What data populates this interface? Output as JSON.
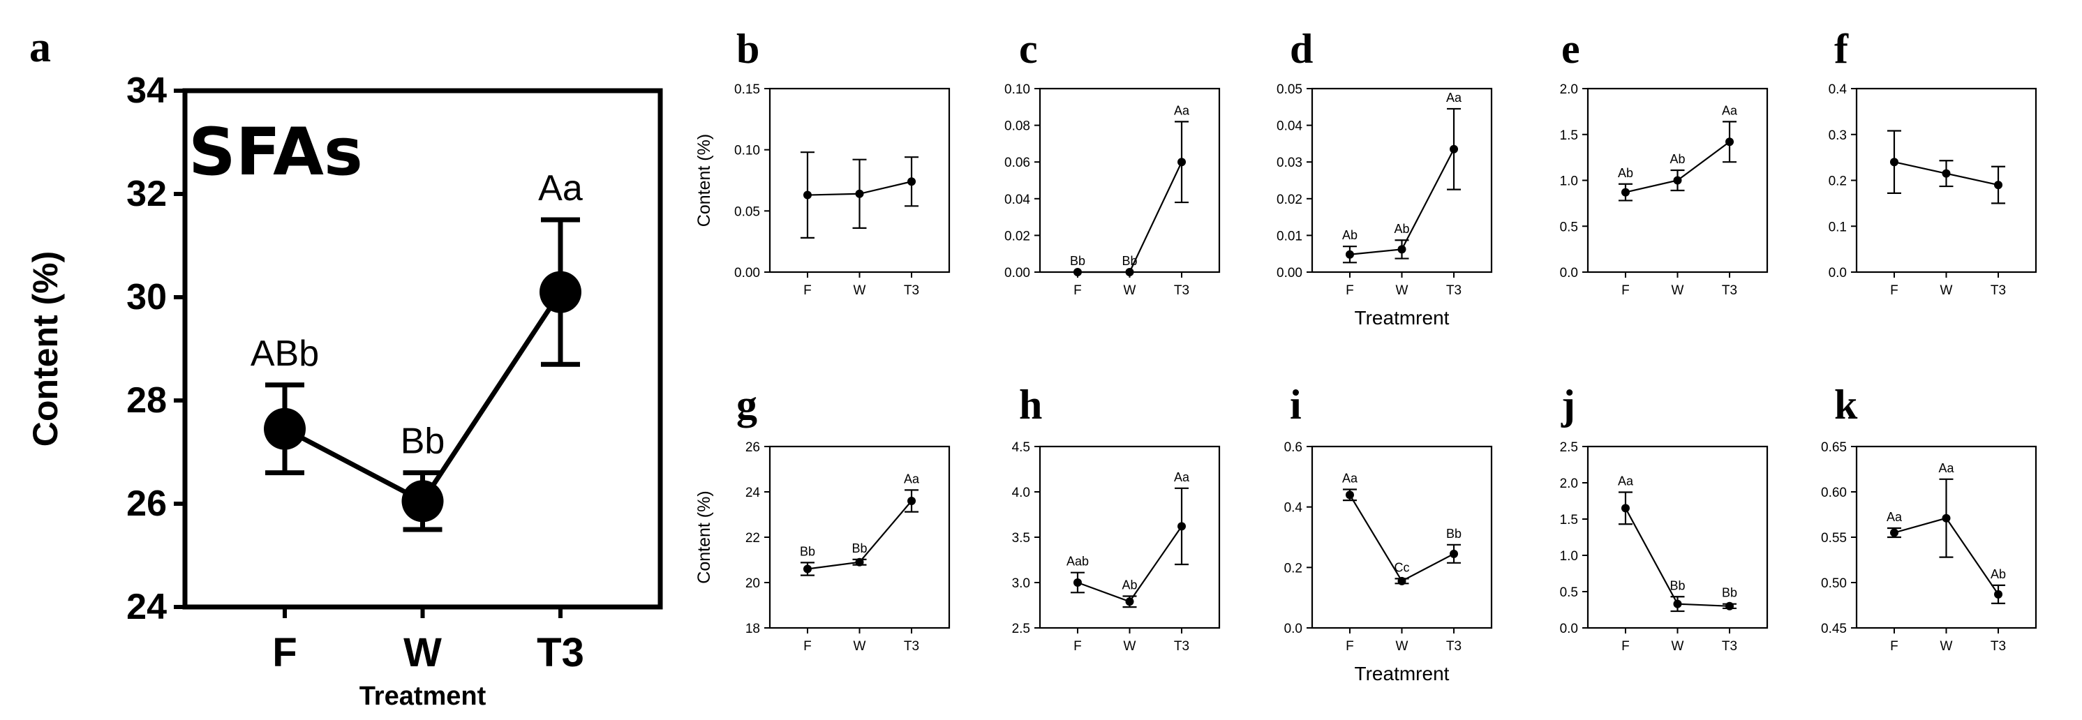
{
  "chart_data": [
    {
      "panel": "a",
      "type": "line",
      "title": "SFAs",
      "ylabel": "Content (%)",
      "xlabel": "Treatment",
      "categories": [
        "F",
        "W",
        "T3"
      ],
      "values": [
        27.45,
        26.05,
        30.1
      ],
      "errors": [
        0.85,
        0.55,
        1.4
      ],
      "significance": [
        "ABb",
        "Bb",
        "Aa"
      ],
      "ylim": [
        24,
        34
      ],
      "yticks": [
        "24",
        "26",
        "28",
        "30",
        "32",
        "34"
      ]
    },
    {
      "panel": "b",
      "type": "line",
      "ylabel": "Content (%)",
      "xlabel": "",
      "categories": [
        "F",
        "W",
        "T3"
      ],
      "values": [
        0.063,
        0.064,
        0.074
      ],
      "errors": [
        0.035,
        0.028,
        0.02
      ],
      "significance": [
        "",
        "",
        ""
      ],
      "ylim": [
        0,
        0.15
      ],
      "yticks": [
        "0.00",
        "0.05",
        "0.10",
        "0.15"
      ]
    },
    {
      "panel": "c",
      "type": "line",
      "ylabel": "",
      "xlabel": "",
      "categories": [
        "F",
        "W",
        "T3"
      ],
      "values": [
        0.0,
        0.0,
        0.06
      ],
      "errors": [
        0,
        0,
        0.022
      ],
      "significance": [
        "Bb",
        "Bb",
        "Aa"
      ],
      "ylim": [
        0,
        0.1
      ],
      "yticks": [
        "0.00",
        "0.02",
        "0.04",
        "0.06",
        "0.08",
        "0.10"
      ]
    },
    {
      "panel": "d",
      "type": "line",
      "ylabel": "",
      "xlabel": "Treatmrent",
      "categories": [
        "F",
        "W",
        "T3"
      ],
      "values": [
        0.0048,
        0.0062,
        0.0335
      ],
      "errors": [
        0.0022,
        0.0025,
        0.011
      ],
      "significance": [
        "Ab",
        "Ab",
        "Aa"
      ],
      "ylim": [
        0,
        0.05
      ],
      "yticks": [
        "0.00",
        "0.01",
        "0.02",
        "0.03",
        "0.04",
        "0.05"
      ]
    },
    {
      "panel": "e",
      "type": "line",
      "ylabel": "",
      "xlabel": "",
      "categories": [
        "F",
        "W",
        "T3"
      ],
      "values": [
        0.87,
        1.0,
        1.42
      ],
      "errors": [
        0.09,
        0.11,
        0.22
      ],
      "significance": [
        "Ab",
        "Ab",
        "Aa"
      ],
      "ylim": [
        0,
        2.0
      ],
      "yticks": [
        "0.0",
        "0.5",
        "1.0",
        "1.5",
        "2.0"
      ]
    },
    {
      "panel": "f",
      "type": "line",
      "ylabel": "",
      "xlabel": "",
      "categories": [
        "F",
        "W",
        "T3"
      ],
      "values": [
        0.24,
        0.215,
        0.19
      ],
      "errors": [
        0.068,
        0.028,
        0.04
      ],
      "significance": [
        "",
        "",
        ""
      ],
      "ylim": [
        0,
        0.4
      ],
      "yticks": [
        "0.0",
        "0.1",
        "0.2",
        "0.3",
        "0.4"
      ]
    },
    {
      "panel": "g",
      "type": "line",
      "ylabel": "Content (%)",
      "xlabel": "",
      "categories": [
        "F",
        "W",
        "T3"
      ],
      "values": [
        20.6,
        20.9,
        23.6
      ],
      "errors": [
        0.28,
        0.12,
        0.48
      ],
      "significance": [
        "Bb",
        "Bb",
        "Aa"
      ],
      "ylim": [
        18,
        26
      ],
      "yticks": [
        "18",
        "20",
        "22",
        "24",
        "26"
      ]
    },
    {
      "panel": "h",
      "type": "line",
      "ylabel": "",
      "xlabel": "",
      "categories": [
        "F",
        "W",
        "T3"
      ],
      "values": [
        3.0,
        2.79,
        3.62
      ],
      "errors": [
        0.11,
        0.06,
        0.42
      ],
      "significance": [
        "Aab",
        "Ab",
        "Aa"
      ],
      "ylim": [
        2.5,
        4.5
      ],
      "yticks": [
        "2.5",
        "3.0",
        "3.5",
        "4.0",
        "4.5"
      ]
    },
    {
      "panel": "i",
      "type": "line",
      "ylabel": "",
      "xlabel": "Treatmrent",
      "categories": [
        "F",
        "W",
        "T3"
      ],
      "values": [
        0.44,
        0.155,
        0.245
      ],
      "errors": [
        0.018,
        0.008,
        0.03
      ],
      "significance": [
        "Aa",
        "Cc",
        "Bb"
      ],
      "ylim": [
        0,
        0.6
      ],
      "yticks": [
        "0.0",
        "0.2",
        "0.4",
        "0.6"
      ]
    },
    {
      "panel": "j",
      "type": "line",
      "ylabel": "",
      "xlabel": "",
      "categories": [
        "F",
        "W",
        "T3"
      ],
      "values": [
        1.65,
        0.33,
        0.3
      ],
      "errors": [
        0.22,
        0.1,
        0.03
      ],
      "significance": [
        "Aa",
        "Bb",
        "Bb"
      ],
      "ylim": [
        0,
        2.5
      ],
      "yticks": [
        "0.0",
        "0.5",
        "1.0",
        "1.5",
        "2.0",
        "2.5"
      ]
    },
    {
      "panel": "k",
      "type": "line",
      "ylabel": "",
      "xlabel": "",
      "categories": [
        "F",
        "W",
        "T3"
      ],
      "values": [
        0.555,
        0.571,
        0.487
      ],
      "errors": [
        0.005,
        0.043,
        0.01
      ],
      "significance": [
        "Aa",
        "Aa",
        "Ab"
      ],
      "ylim": [
        0.45,
        0.65
      ],
      "yticks": [
        "0.45",
        "0.50",
        "0.55",
        "0.60",
        "0.65"
      ]
    }
  ]
}
